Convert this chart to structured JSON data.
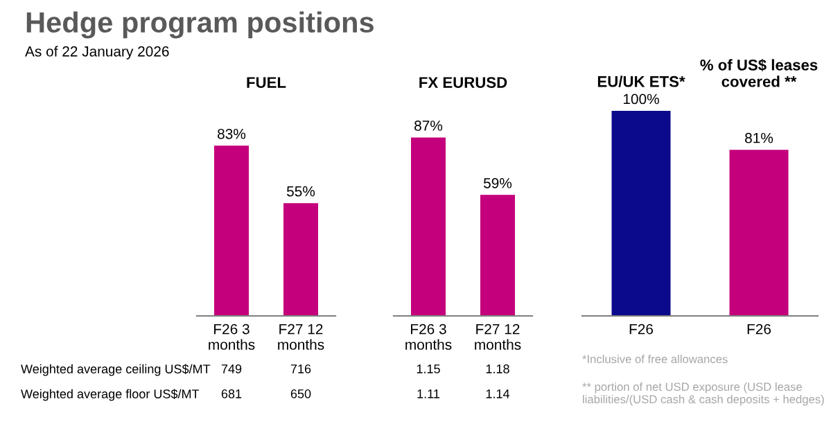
{
  "chart_data": [
    {
      "type": "other",
      "title": "Hedge program positions",
      "subtitle": "As of 22 January 2026",
      "annotations": [
        "Weighted average ceiling US$/MT",
        "Weighted average floor US$/MT"
      ]
    },
    {
      "type": "bar",
      "title": "FUEL",
      "categories": [
        "F26 3\nmonths",
        "F27 12\nmonths"
      ],
      "values": [
        83,
        55
      ],
      "color": "#c5007c",
      "value_labels": [
        "83%",
        "55%"
      ],
      "annotations": [
        "749",
        "716",
        "681",
        "650"
      ]
    },
    {
      "type": "bar",
      "title": "FX EURUSD",
      "categories": [
        "F26 3\nmonths",
        "F27 12\nmonths"
      ],
      "values": [
        87,
        59
      ],
      "color": "#c5007c",
      "value_labels": [
        "87%",
        "59%"
      ],
      "annotations": [
        "1.15",
        "1.18",
        "1.11",
        "1.14"
      ]
    },
    {
      "type": "bar",
      "categories": [
        "F26",
        "F26"
      ],
      "values": [
        100,
        81
      ],
      "colors": [
        "#0b0a8c",
        "#c5007c"
      ],
      "value_labels": [
        "100%",
        "81%"
      ],
      "annotations": [
        "EU/UK ETS*",
        "% of US$ leases\ncovered **",
        "*Inclusive of free allowances",
        "** portion of net USD exposure (USD lease liabilities/(USD cash & cash deposits + hedges)"
      ]
    }
  ]
}
